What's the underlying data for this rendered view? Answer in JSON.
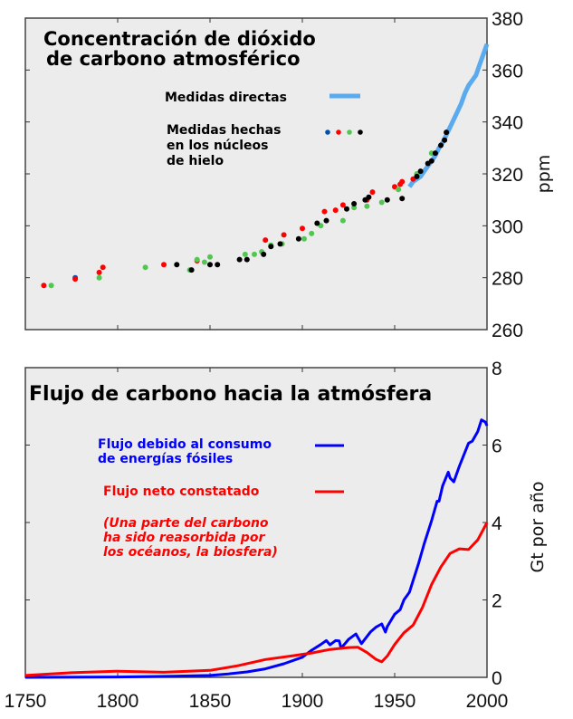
{
  "chart_data": [
    {
      "type": "scatter",
      "title": "Concentración de dióxido de carbono atmosférico",
      "title_lines": [
        "Concentración de dióxido",
        "de carbono atmosférico"
      ],
      "xlabel": "",
      "ylabel": "ppm",
      "xlim": [
        1750,
        2000
      ],
      "ylim": [
        260,
        380
      ],
      "yticks": [
        260,
        280,
        300,
        320,
        340,
        360,
        380
      ],
      "xticks": [
        1750,
        1800,
        1850,
        1900,
        1950,
        2000
      ],
      "grid": false,
      "background": "#ececec",
      "legend": [
        {
          "label": "Medidas directas",
          "type": "line",
          "color": "#5aaaf0"
        },
        {
          "label_lines": [
            "Medidas hechas",
            "en los núcleos",
            "de hielo"
          ],
          "label": "Medidas hechas en los núcleos de hielo",
          "type": "markers",
          "colors": [
            "#0050b4",
            "#ff0000",
            "#50c850",
            "#000000"
          ]
        }
      ],
      "series": [
        {
          "name": "Medidas directas",
          "type": "line",
          "color": "#5aaaf0",
          "x": [
            1958,
            1960,
            1962,
            1964,
            1966,
            1968,
            1970,
            1972,
            1974,
            1976,
            1978,
            1980,
            1982,
            1984,
            1986,
            1988,
            1990,
            1992,
            1994,
            1996,
            1998,
            2000
          ],
          "y": [
            315,
            317,
            318,
            319,
            321,
            323,
            325,
            327,
            330,
            332,
            335,
            338,
            341,
            344,
            347,
            351,
            354,
            356,
            358,
            362,
            366,
            370
          ]
        },
        {
          "name": "Núcleos de hielo (azul)",
          "type": "scatter",
          "color": "#0050b4",
          "x": [
            1777
          ],
          "y": [
            280
          ]
        },
        {
          "name": "Núcleos de hielo (rojo)",
          "type": "scatter",
          "color": "#ff0000",
          "x": [
            1760,
            1777,
            1790,
            1792,
            1825,
            1843,
            1880,
            1890,
            1900,
            1912,
            1918,
            1922,
            1935,
            1938,
            1950,
            1953,
            1954,
            1960
          ],
          "y": [
            277,
            279.5,
            282,
            284,
            285,
            286.5,
            294.5,
            296.5,
            299,
            305.5,
            306,
            308,
            310,
            313,
            315,
            316,
            317,
            318
          ]
        },
        {
          "name": "Núcleos de hielo (verde)",
          "type": "scatter",
          "color": "#50c850",
          "x": [
            1764,
            1790,
            1815,
            1839,
            1843,
            1847,
            1850,
            1869,
            1874,
            1878,
            1883,
            1889,
            1901,
            1905,
            1910,
            1922,
            1928,
            1935,
            1943,
            1952,
            1962,
            1970
          ],
          "y": [
            277,
            280,
            284,
            283,
            287,
            286,
            288,
            289,
            289,
            290,
            292.5,
            293,
            295,
            297,
            300,
            302,
            307,
            307.5,
            309,
            314,
            320,
            328
          ]
        },
        {
          "name": "Núcleos de hielo (negro)",
          "type": "scatter",
          "color": "#000000",
          "x": [
            1832,
            1840,
            1850,
            1854,
            1866,
            1870,
            1879,
            1883,
            1888,
            1898,
            1908,
            1913,
            1924,
            1928,
            1934,
            1936,
            1946,
            1954,
            1962,
            1964,
            1968,
            1970,
            1972,
            1975,
            1977,
            1978
          ],
          "y": [
            285,
            283,
            285,
            285,
            287,
            287,
            289,
            292,
            293,
            295,
            301,
            302,
            306.5,
            308.5,
            310,
            311,
            310,
            310.5,
            319,
            321,
            324,
            325,
            328,
            331,
            333,
            336
          ]
        }
      ]
    },
    {
      "type": "line",
      "title": "Flujo de carbono hacia la atmósfera",
      "xlabel": "",
      "ylabel": "Gt por año",
      "xlim": [
        1750,
        2000
      ],
      "ylim": [
        0,
        8
      ],
      "yticks": [
        0,
        2,
        4,
        6,
        8
      ],
      "xticks": [
        1750,
        1800,
        1850,
        1900,
        1950,
        2000
      ],
      "xtick_labels": [
        "1750",
        "1800",
        "1850",
        "1900",
        "1950",
        "2000"
      ],
      "grid": false,
      "background": "#ececec",
      "legend": [
        {
          "label_lines": [
            "Flujo debido al consumo",
            "de energías fósiles"
          ],
          "label": "Flujo debido al consumo de energías fósiles",
          "color": "#0000ff"
        },
        {
          "label": "Flujo neto constatado",
          "color": "#ff0000"
        }
      ],
      "annotation": {
        "lines": [
          "(Una parte del carbono",
          "ha sido reasorbida por",
          "los océanos, la biosfera)"
        ],
        "color": "#ff0000",
        "style": "bold italic"
      },
      "series": [
        {
          "name": "Flujo debido al consumo de energías fósiles",
          "color": "#0000ff",
          "x": [
            1750,
            1800,
            1830,
            1850,
            1860,
            1870,
            1880,
            1890,
            1900,
            1905,
            1910,
            1913,
            1915,
            1918,
            1920,
            1921,
            1925,
            1929,
            1932,
            1937,
            1940,
            1943,
            1945,
            1946,
            1950,
            1953,
            1955,
            1958,
            1960,
            1963,
            1966,
            1970,
            1973,
            1974,
            1976,
            1979,
            1980,
            1982,
            1985,
            1990,
            1992,
            1995,
            1997,
            1999,
            2000
          ],
          "y": [
            0.0,
            0.01,
            0.03,
            0.05,
            0.09,
            0.14,
            0.22,
            0.35,
            0.52,
            0.7,
            0.85,
            0.95,
            0.84,
            0.95,
            0.94,
            0.75,
            0.98,
            1.12,
            0.87,
            1.18,
            1.3,
            1.38,
            1.17,
            1.31,
            1.63,
            1.75,
            2.0,
            2.2,
            2.5,
            2.95,
            3.45,
            4.05,
            4.55,
            4.55,
            4.95,
            5.3,
            5.15,
            5.05,
            5.45,
            6.05,
            6.1,
            6.35,
            6.65,
            6.6,
            6.5
          ]
        },
        {
          "name": "Flujo neto constatado",
          "color": "#ff0000",
          "x": [
            1750,
            1775,
            1800,
            1825,
            1850,
            1865,
            1880,
            1895,
            1905,
            1915,
            1925,
            1930,
            1935,
            1940,
            1943,
            1946,
            1950,
            1955,
            1960,
            1965,
            1970,
            1975,
            1980,
            1985,
            1990,
            1995,
            2000
          ],
          "y": [
            0.05,
            0.12,
            0.16,
            0.13,
            0.18,
            0.3,
            0.46,
            0.56,
            0.63,
            0.72,
            0.77,
            0.78,
            0.64,
            0.46,
            0.4,
            0.55,
            0.85,
            1.15,
            1.35,
            1.8,
            2.4,
            2.85,
            3.2,
            3.32,
            3.3,
            3.55,
            4.0
          ]
        }
      ]
    }
  ]
}
